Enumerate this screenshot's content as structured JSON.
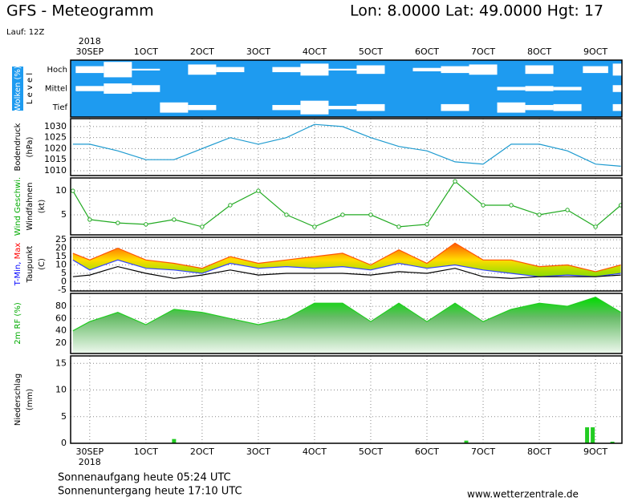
{
  "header": {
    "title": "GFS - Meteogramm",
    "location": "Lon: 8.0000  Lat: 49.0000  Hgt: 17",
    "run": "Lauf: 12Z"
  },
  "footer": {
    "sunrise": "Sonnenaufgang heute 05:24 UTC",
    "sunset": "Sonnenuntergang heute 17:10 UTC",
    "source": "www.wetterzentrale.de"
  },
  "chart_data": {
    "type": "meteogram",
    "year_label": "2018",
    "xlim": [
      -0.34,
      9.47
    ],
    "xticks": [
      {
        "value": 0,
        "label": "30SEP"
      },
      {
        "value": 1,
        "label": "1OCT"
      },
      {
        "value": 2,
        "label": "2OCT"
      },
      {
        "value": 3,
        "label": "3OCT"
      },
      {
        "value": 4,
        "label": "4OCT"
      },
      {
        "value": 5,
        "label": "5OCT"
      },
      {
        "value": 6,
        "label": "6OCT"
      },
      {
        "value": 7,
        "label": "7OCT"
      },
      {
        "value": 8,
        "label": "8OCT"
      },
      {
        "value": 9,
        "label": "9OCT"
      }
    ],
    "x": [
      -0.3,
      0,
      0.5,
      1,
      1.5,
      2,
      2.5,
      3,
      3.5,
      4,
      4.5,
      5,
      5.5,
      6,
      6.5,
      7,
      7.5,
      8,
      8.5,
      9,
      9.45
    ],
    "panels": [
      {
        "type": "clouds",
        "background": "#1e9bf0",
        "ylabel": [
          [
            {
              "text": "Wolken (%)",
              "color": "#ffffff",
              "background": "#1e9bf0"
            }
          ],
          [
            {
              "text": "L e v e l"
            }
          ]
        ],
        "series": [
          {
            "name": "Hoch",
            "color": "#ffffff",
            "values": [
              0,
              40,
              90,
              10,
              0,
              60,
              30,
              0,
              30,
              70,
              10,
              50,
              0,
              20,
              40,
              60,
              0,
              50,
              0,
              40,
              70
            ]
          },
          {
            "name": "Mittel",
            "color": "#ffffff",
            "values": [
              0,
              30,
              60,
              40,
              0,
              0,
              0,
              0,
              0,
              0,
              0,
              0,
              0,
              0,
              0,
              0,
              20,
              30,
              20,
              0,
              40
            ]
          },
          {
            "name": "Tief",
            "color": "#ffffff",
            "values": [
              0,
              0,
              0,
              0,
              60,
              30,
              0,
              0,
              30,
              80,
              20,
              40,
              0,
              0,
              40,
              0,
              60,
              30,
              40,
              0,
              40
            ]
          }
        ]
      },
      {
        "type": "line",
        "ylabel": [
          [
            {
              "text": "Bodendruck"
            }
          ],
          [
            {
              "text": "(hPa)"
            }
          ]
        ],
        "ylim": [
          1007.8,
          1033.6
        ],
        "yticks": [
          1010,
          1015,
          1020,
          1025,
          1030
        ],
        "series": [
          {
            "color": "#1e9bd0",
            "values": [
              1022,
              1022,
              1019,
              1015,
              1015,
              1020,
              1025,
              1022,
              1025,
              1031,
              1030,
              1025,
              1021,
              1019,
              1014,
              1013,
              1022,
              1022,
              1019,
              1013,
              1012
            ]
          }
        ]
      },
      {
        "type": "line",
        "markers": true,
        "ylabel": [
          [
            {
              "text": "Wind Geschwi.",
              "color": "#00aa00"
            }
          ],
          [
            {
              "text": "Windfahnen"
            }
          ],
          [
            {
              "text": "(kt)"
            }
          ]
        ],
        "ylim": [
          0.8,
          12.7
        ],
        "yticks": [
          5,
          10
        ],
        "series": [
          {
            "color": "#22aa22",
            "values": [
              10,
              4,
              3.3,
              3,
              4,
              2.5,
              7,
              10,
              5,
              2.5,
              5,
              5,
              2.5,
              3,
              12,
              7,
              7,
              5,
              6,
              2.5,
              7
            ]
          }
        ]
      },
      {
        "type": "band",
        "ylabel": [
          [
            {
              "text": "T-Min,",
              "color": "#0000ff"
            },
            {
              "text": " Max",
              "color": "#ff0000"
            }
          ],
          [
            {
              "text": "Taupunkt"
            }
          ],
          [
            {
              "text": "(C)"
            }
          ]
        ],
        "ylim": [
          -5.5,
          26.5
        ],
        "yticks": [
          -5,
          0,
          5,
          10,
          15,
          20,
          25
        ],
        "series": [
          {
            "color": "#ff5500",
            "values": [
              17,
              13,
              20,
              13,
              11,
              8,
              15,
              11,
              13,
              15,
              17,
              10,
              19,
              11,
              23,
              13,
              13,
              9,
              10,
              6,
              10
            ]
          },
          {
            "color": "#3344ff",
            "values": [
              13,
              7,
              13,
              8,
              7,
              5,
              11,
              8,
              9,
              8,
              9,
              7,
              11,
              8,
              10,
              7,
              5,
              3,
              4,
              3,
              5
            ]
          },
          {
            "color": "#000000",
            "values": [
              3,
              4,
              9,
              5,
              2,
              4,
              7,
              4,
              5,
              5,
              5,
              4,
              6,
              5,
              8,
              3,
              2,
              3,
              3,
              3,
              4
            ]
          }
        ]
      },
      {
        "type": "area",
        "ylabel": [
          [
            {
              "text": "2m RF (%)",
              "color": "#00aa00"
            }
          ]
        ],
        "ylim": [
          3,
          101
        ],
        "yticks": [
          20,
          40,
          60,
          80
        ],
        "series": [
          {
            "color": "#22cc22",
            "values": [
              40,
              55,
              70,
              50,
              75,
              70,
              60,
              50,
              60,
              85,
              85,
              55,
              85,
              55,
              85,
              55,
              75,
              85,
              80,
              95,
              70
            ]
          }
        ]
      },
      {
        "type": "bar",
        "ylabel": [
          [
            {
              "text": "Niederschlag"
            }
          ],
          [
            {
              "text": "(mm)"
            }
          ]
        ],
        "ylim": [
          0,
          16.4
        ],
        "yticks": [
          0,
          5,
          10,
          15
        ],
        "x": [
          1.5,
          6.7,
          8.85,
          8.95,
          9.3
        ],
        "series": [
          {
            "color": "#22cc22",
            "values": [
              0.8,
              0.5,
              3,
              3,
              0.3
            ]
          }
        ]
      }
    ]
  }
}
